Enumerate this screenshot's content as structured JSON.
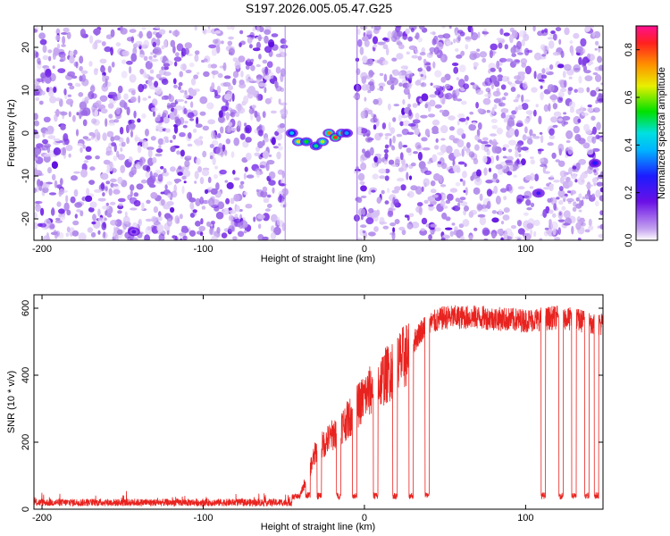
{
  "title": "S197.2026.005.05.47.G25",
  "chart_data": [
    {
      "type": "heatmap",
      "xlabel": "Height of straight line (km)",
      "ylabel": "Frequency (Hz)",
      "xlim": [
        -205,
        148
      ],
      "ylim": [
        -25,
        25
      ],
      "xticks": [
        -200,
        -100,
        0,
        100
      ],
      "yticks": [
        -20,
        -10,
        0,
        10,
        20
      ],
      "gap_x": [
        -49,
        -5
      ],
      "signal_points": [
        {
          "x": -45,
          "y": 0,
          "value": 0.45
        },
        {
          "x": -41,
          "y": -2,
          "value": 0.75
        },
        {
          "x": -36,
          "y": -2,
          "value": 0.6
        },
        {
          "x": -30,
          "y": -3,
          "value": 0.55
        },
        {
          "x": -26,
          "y": -2,
          "value": 0.7
        },
        {
          "x": -22,
          "y": 0,
          "value": 0.85
        },
        {
          "x": -18,
          "y": -1,
          "value": 0.9
        },
        {
          "x": -14,
          "y": 0,
          "value": 0.7
        },
        {
          "x": -11,
          "y": 0,
          "value": 0.4
        },
        {
          "x": 108,
          "y": -14,
          "value": 0.25
        },
        {
          "x": 143,
          "y": -7,
          "value": 0.3
        },
        {
          "x": -143,
          "y": -23,
          "value": 0.2
        }
      ],
      "colorbar": {
        "label": "Normalized spectral amplitude",
        "range": [
          0,
          0.9
        ],
        "ticks": [
          0.0,
          0.2,
          0.4,
          0.6,
          0.8
        ]
      }
    },
    {
      "type": "line",
      "xlabel": "Height of straight line (km)",
      "ylabel": "SNR (10 * v/v)",
      "xlim": [
        -205,
        148
      ],
      "ylim": [
        0,
        640
      ],
      "xticks": [
        -200,
        -100,
        0,
        100
      ],
      "yticks": [
        0,
        200,
        400,
        600
      ],
      "color": "#e8231f",
      "series": [
        {
          "name": "noise floor",
          "x": [
            -205,
            -60
          ],
          "y": [
            20,
            22
          ]
        },
        {
          "name": "rise",
          "x": [
            -40,
            -30,
            -20,
            -10,
            0,
            10,
            20,
            30,
            35,
            40,
            50,
            70,
            100,
            120,
            148
          ],
          "y": [
            40,
            180,
            230,
            280,
            350,
            400,
            450,
            500,
            540,
            560,
            580,
            580,
            570,
            580,
            560
          ]
        }
      ],
      "dropouts_x": [
        -35,
        -28,
        -16,
        -6,
        7,
        19,
        29,
        39,
        111,
        122,
        130,
        138,
        144
      ],
      "dropout_value": 40
    }
  ]
}
